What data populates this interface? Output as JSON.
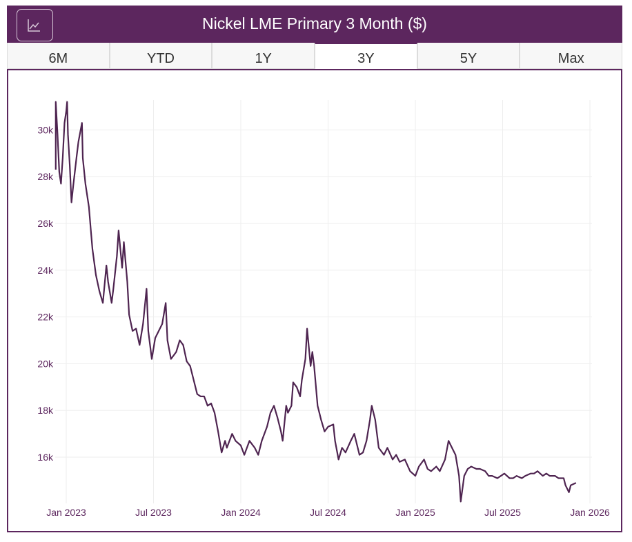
{
  "header": {
    "title": "Nickel LME Primary 3 Month ($)",
    "icon": "line-chart-icon"
  },
  "tabs": [
    {
      "label": "6M"
    },
    {
      "label": "YTD"
    },
    {
      "label": "1Y"
    },
    {
      "label": "3Y",
      "active": true
    },
    {
      "label": "5Y"
    },
    {
      "label": "Max"
    }
  ],
  "colors": {
    "brand": "#5c265e",
    "line": "#4e2450",
    "grid": "#eeeeee"
  },
  "chart_data": {
    "type": "line",
    "title": "Nickel LME Primary 3 Month ($)",
    "xlabel": "",
    "ylabel": "",
    "x_ticks": [
      {
        "t": 2023.0,
        "label": "Jan 2023"
      },
      {
        "t": 2023.5,
        "label": "Jul 2023"
      },
      {
        "t": 2024.0,
        "label": "Jan 2024"
      },
      {
        "t": 2024.5,
        "label": "Jul 2024"
      },
      {
        "t": 2025.0,
        "label": "Jan 2025"
      },
      {
        "t": 2025.5,
        "label": "Jul 2025"
      },
      {
        "t": 2026.0,
        "label": "Jan 2026"
      }
    ],
    "y_ticks": [
      {
        "v": 16000,
        "label": "16k"
      },
      {
        "v": 18000,
        "label": "18k"
      },
      {
        "v": 20000,
        "label": "20k"
      },
      {
        "v": 22000,
        "label": "22k"
      },
      {
        "v": 24000,
        "label": "24k"
      },
      {
        "v": 26000,
        "label": "26k"
      },
      {
        "v": 28000,
        "label": "28k"
      },
      {
        "v": 30000,
        "label": "30k"
      }
    ],
    "grid": true,
    "series": [
      {
        "name": "Nickel LME Primary 3 Month",
        "points": [
          [
            2022.94,
            28300
          ],
          [
            2022.94,
            31200
          ],
          [
            2022.95,
            29800
          ],
          [
            2022.96,
            28200
          ],
          [
            2022.97,
            27700
          ],
          [
            2022.98,
            28800
          ],
          [
            2022.99,
            30300
          ],
          [
            2023.0,
            30800
          ],
          [
            2023.005,
            31200
          ],
          [
            2023.01,
            29800
          ],
          [
            2023.02,
            28500
          ],
          [
            2023.03,
            26900
          ],
          [
            2023.04,
            27600
          ],
          [
            2023.06,
            28900
          ],
          [
            2023.07,
            29500
          ],
          [
            2023.09,
            30300
          ],
          [
            2023.095,
            28800
          ],
          [
            2023.11,
            27700
          ],
          [
            2023.13,
            26700
          ],
          [
            2023.14,
            25800
          ],
          [
            2023.15,
            24900
          ],
          [
            2023.17,
            23800
          ],
          [
            2023.19,
            23100
          ],
          [
            2023.21,
            22600
          ],
          [
            2023.23,
            24200
          ],
          [
            2023.24,
            23500
          ],
          [
            2023.26,
            22600
          ],
          [
            2023.27,
            23200
          ],
          [
            2023.29,
            24600
          ],
          [
            2023.3,
            25700
          ],
          [
            2023.32,
            24100
          ],
          [
            2023.33,
            25200
          ],
          [
            2023.35,
            23500
          ],
          [
            2023.36,
            22100
          ],
          [
            2023.38,
            21400
          ],
          [
            2023.4,
            21500
          ],
          [
            2023.42,
            20800
          ],
          [
            2023.44,
            21700
          ],
          [
            2023.46,
            23200
          ],
          [
            2023.47,
            21400
          ],
          [
            2023.49,
            20200
          ],
          [
            2023.51,
            21100
          ],
          [
            2023.53,
            21400
          ],
          [
            2023.55,
            21700
          ],
          [
            2023.57,
            22600
          ],
          [
            2023.58,
            21000
          ],
          [
            2023.6,
            20200
          ],
          [
            2023.63,
            20500
          ],
          [
            2023.65,
            21000
          ],
          [
            2023.67,
            20800
          ],
          [
            2023.69,
            20100
          ],
          [
            2023.71,
            19900
          ],
          [
            2023.73,
            19300
          ],
          [
            2023.75,
            18700
          ],
          [
            2023.77,
            18600
          ],
          [
            2023.79,
            18600
          ],
          [
            2023.81,
            18200
          ],
          [
            2023.83,
            18300
          ],
          [
            2023.85,
            17900
          ],
          [
            2023.87,
            17100
          ],
          [
            2023.89,
            16200
          ],
          [
            2023.91,
            16700
          ],
          [
            2023.92,
            16400
          ],
          [
            2023.95,
            17000
          ],
          [
            2023.97,
            16700
          ],
          [
            2024.0,
            16500
          ],
          [
            2024.02,
            16100
          ],
          [
            2024.05,
            16700
          ],
          [
            2024.08,
            16400
          ],
          [
            2024.1,
            16100
          ],
          [
            2024.12,
            16700
          ],
          [
            2024.15,
            17300
          ],
          [
            2024.17,
            17900
          ],
          [
            2024.19,
            18200
          ],
          [
            2024.21,
            17700
          ],
          [
            2024.23,
            17100
          ],
          [
            2024.24,
            16700
          ],
          [
            2024.26,
            18200
          ],
          [
            2024.27,
            17900
          ],
          [
            2024.29,
            18200
          ],
          [
            2024.3,
            19200
          ],
          [
            2024.32,
            19000
          ],
          [
            2024.34,
            18600
          ],
          [
            2024.35,
            19300
          ],
          [
            2024.37,
            20200
          ],
          [
            2024.38,
            21500
          ],
          [
            2024.4,
            19900
          ],
          [
            2024.41,
            20500
          ],
          [
            2024.42,
            19900
          ],
          [
            2024.44,
            18200
          ],
          [
            2024.46,
            17600
          ],
          [
            2024.48,
            17100
          ],
          [
            2024.5,
            17300
          ],
          [
            2024.53,
            17400
          ],
          [
            2024.54,
            16700
          ],
          [
            2024.56,
            15900
          ],
          [
            2024.58,
            16400
          ],
          [
            2024.6,
            16200
          ],
          [
            2024.63,
            16700
          ],
          [
            2024.65,
            17000
          ],
          [
            2024.68,
            16100
          ],
          [
            2024.7,
            16200
          ],
          [
            2024.72,
            16700
          ],
          [
            2024.74,
            17600
          ],
          [
            2024.75,
            18200
          ],
          [
            2024.77,
            17600
          ],
          [
            2024.79,
            16400
          ],
          [
            2024.82,
            16100
          ],
          [
            2024.84,
            16400
          ],
          [
            2024.87,
            15900
          ],
          [
            2024.89,
            16100
          ],
          [
            2024.91,
            15800
          ],
          [
            2024.94,
            15900
          ],
          [
            2024.97,
            15400
          ],
          [
            2025.0,
            15200
          ],
          [
            2025.02,
            15600
          ],
          [
            2025.05,
            15900
          ],
          [
            2025.07,
            15500
          ],
          [
            2025.09,
            15400
          ],
          [
            2025.12,
            15600
          ],
          [
            2025.14,
            15400
          ],
          [
            2025.17,
            15900
          ],
          [
            2025.19,
            16700
          ],
          [
            2025.21,
            16400
          ],
          [
            2025.23,
            16100
          ],
          [
            2025.25,
            15200
          ],
          [
            2025.26,
            14100
          ],
          [
            2025.28,
            15200
          ],
          [
            2025.3,
            15500
          ],
          [
            2025.32,
            15600
          ],
          [
            2025.35,
            15500
          ],
          [
            2025.37,
            15500
          ],
          [
            2025.4,
            15400
          ],
          [
            2025.42,
            15200
          ],
          [
            2025.44,
            15200
          ],
          [
            2025.47,
            15100
          ],
          [
            2025.49,
            15200
          ],
          [
            2025.51,
            15300
          ],
          [
            2025.54,
            15100
          ],
          [
            2025.56,
            15100
          ],
          [
            2025.58,
            15200
          ],
          [
            2025.61,
            15100
          ],
          [
            2025.63,
            15200
          ],
          [
            2025.66,
            15300
          ],
          [
            2025.68,
            15300
          ],
          [
            2025.7,
            15400
          ],
          [
            2025.73,
            15200
          ],
          [
            2025.75,
            15300
          ],
          [
            2025.77,
            15200
          ],
          [
            2025.8,
            15200
          ],
          [
            2025.82,
            15100
          ],
          [
            2025.85,
            15100
          ],
          [
            2025.86,
            14800
          ],
          [
            2025.88,
            14500
          ],
          [
            2025.89,
            14800
          ],
          [
            2025.92,
            14900
          ]
        ]
      }
    ]
  }
}
